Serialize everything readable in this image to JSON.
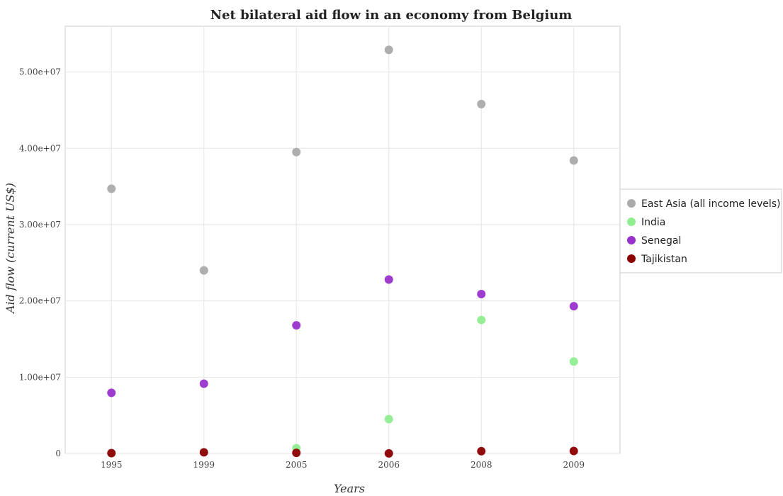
{
  "chart_data": {
    "type": "scatter",
    "title": "Net bilateral aid flow in an economy from Belgium",
    "xlabel": "Years",
    "ylabel": "Aid flow (current US$)",
    "categories": [
      "1995",
      "1999",
      "2005",
      "2006",
      "2008",
      "2009"
    ],
    "ylim": [
      0,
      56000000
    ],
    "yticks": [
      0,
      10000000,
      20000000,
      30000000,
      40000000,
      50000000
    ],
    "ytick_labels": [
      "0",
      "1.00e+07",
      "2.00e+07",
      "3.00e+07",
      "4.00e+07",
      "5.00e+07"
    ],
    "grid": true,
    "legend_position": "right",
    "series": [
      {
        "name": "East Asia (all income levels)",
        "color": "#aaaaaa",
        "values": [
          34700000,
          24000000,
          39500000,
          52900000,
          45800000,
          38400000
        ]
      },
      {
        "name": "India",
        "color": "#90ee90",
        "values": [
          null,
          null,
          700000,
          4500000,
          17500000,
          12050000
        ]
      },
      {
        "name": "Senegal",
        "color": "#9932cc",
        "values": [
          7950000,
          9150000,
          16800000,
          22800000,
          20900000,
          19300000
        ]
      },
      {
        "name": "Tajikistan",
        "color": "#8b0000",
        "values": [
          50000,
          150000,
          80000,
          10000,
          300000,
          320000
        ]
      }
    ]
  }
}
